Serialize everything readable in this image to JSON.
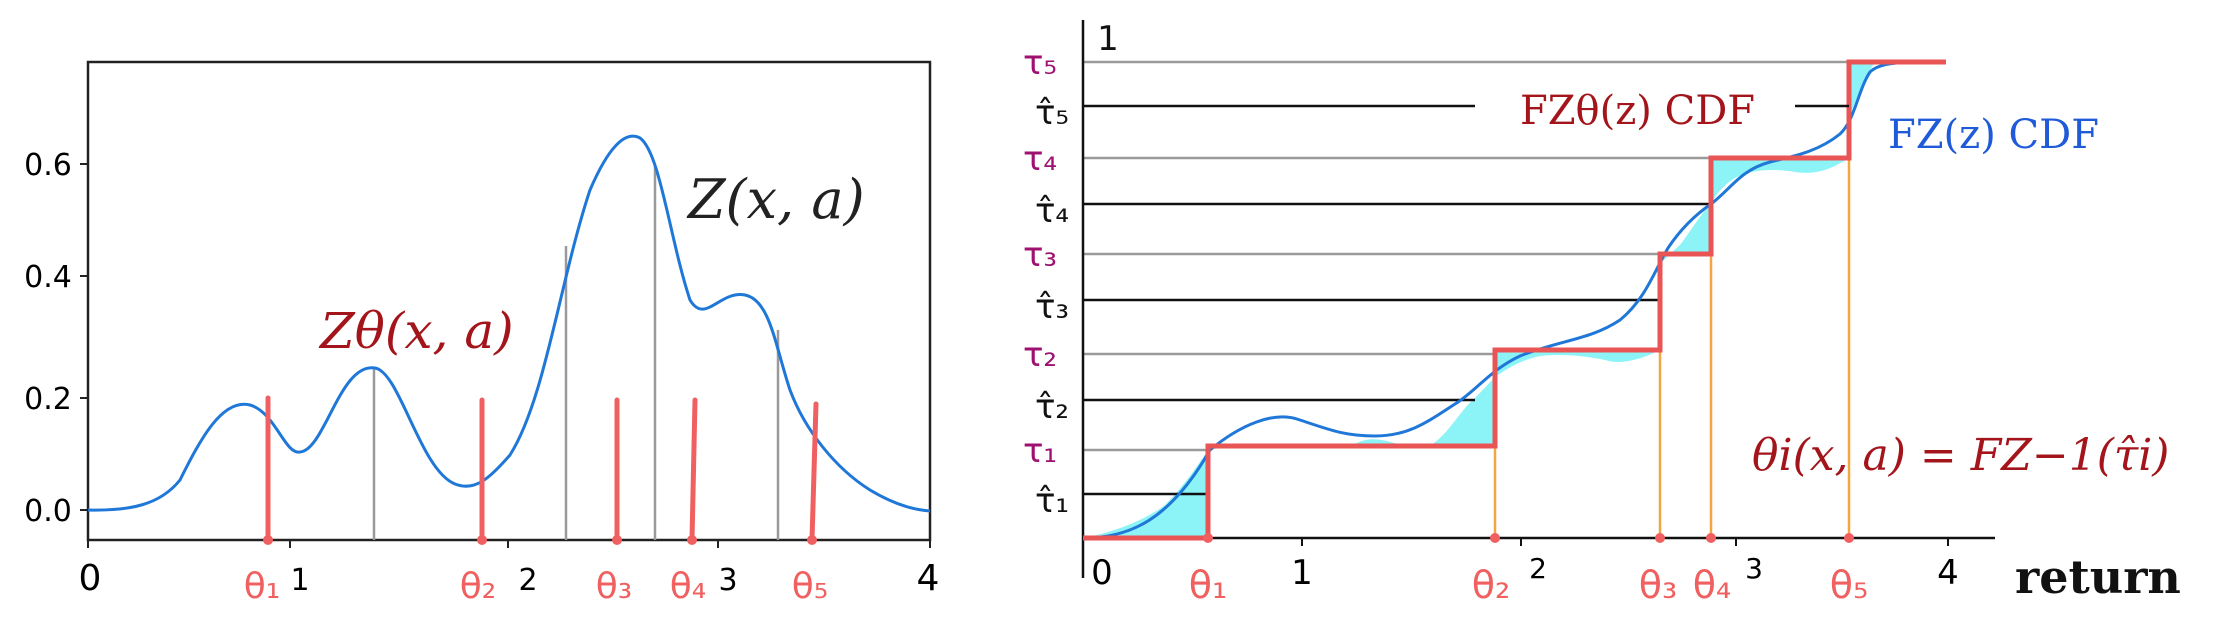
{
  "colors": {
    "curve": "#1f77d8",
    "theta": "#f06060",
    "tau_label": "#9e1170",
    "dark_red": "#a3151b",
    "cyan_fill": "#8cf3f6",
    "gray_line": "#9a9a9a",
    "orange": "#f2a540"
  },
  "left": {
    "y_ticks": [
      "0.0",
      "0.2",
      "0.4",
      "0.6"
    ],
    "x_ticks": [
      "0",
      "1",
      "2",
      "3",
      "4"
    ],
    "theta_labels": [
      "θ₁",
      "θ₂",
      "θ₃",
      "θ₄",
      "θ₅"
    ],
    "z_label": "Z(x, a)",
    "z_theta_label": "Zθ(x, a)"
  },
  "right": {
    "y_top_label": "1",
    "tau_labels": [
      "τ₁",
      "τ₂",
      "τ₃",
      "τ₄",
      "τ₅"
    ],
    "tau_hat_labels": [
      "τ̂₁",
      "τ̂₂",
      "τ̂₃",
      "τ̂₄",
      "τ̂₅"
    ],
    "x_ticks": [
      "0",
      "1",
      "2",
      "3",
      "4"
    ],
    "theta_labels": [
      "θ₁",
      "θ₂",
      "θ₃",
      "θ₄",
      "θ₅"
    ],
    "x_axis_label": "return",
    "f_z_theta_label": "FZθ(z)  CDF",
    "f_z_label": "FZ(z)  CDF",
    "formula": "θi(x, a) = FZ−1(τ̂i)"
  }
}
